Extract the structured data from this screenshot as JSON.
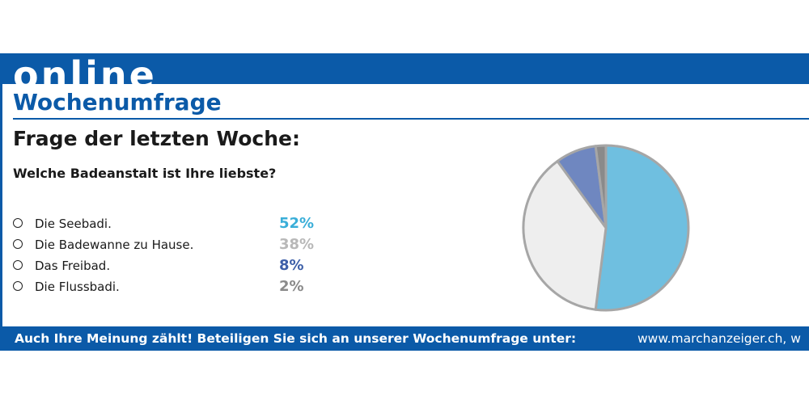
{
  "header": {
    "brand": "online",
    "title": "Wochenumfrage"
  },
  "poll": {
    "heading": "Frage der letzten Woche:",
    "question": "Welche Badeanstalt ist Ihre liebste?"
  },
  "chart_data": {
    "type": "pie",
    "categories": [
      "Die Seebadi.",
      "Die Badewanne zu Hause.",
      "Das Freibad.",
      "Die Flussbadi."
    ],
    "values": [
      52,
      38,
      8,
      2
    ],
    "labels": [
      "52%",
      "38%",
      "8%",
      "2%"
    ],
    "colors": [
      "#6fbfe0",
      "#eeeeee",
      "#6f87c0",
      "#8a8a8a"
    ],
    "label_colors": [
      "#3aaed8",
      "#b8b8b8",
      "#3d5fa8",
      "#8a8a8a"
    ],
    "stroke_color": "#a6a6a6",
    "start": "12 o'clock",
    "direction": "clockwise"
  },
  "footer": {
    "cta": "Auch Ihre Meinung zählt! Beteiligen Sie sich an unserer Wochenumfrage unter:",
    "url": "www.marchanzeiger.ch, w"
  }
}
